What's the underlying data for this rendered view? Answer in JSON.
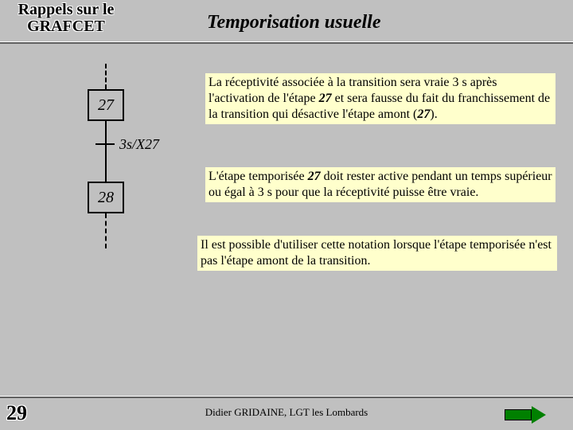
{
  "header": {
    "subtitle_line1": "Rappels sur le",
    "subtitle_line2": "GRAFCET",
    "title": "Temporisation usuelle"
  },
  "diagram": {
    "step_a": "27",
    "step_b": "28",
    "receptivity": "3s/X27"
  },
  "paragraphs": {
    "p1_a": "La réceptivité associée à la transition sera vraie 3 s après l'activation de l'étape ",
    "p1_b": "27",
    "p1_c": " et sera fausse du fait du franchissement de la transition qui désactive l'étape amont (",
    "p1_d": "27",
    "p1_e": ").",
    "p2_a": "L'étape temporisée ",
    "p2_b": "27",
    "p2_c": " doit rester active pendant un temps supérieur ou égal à 3 s pour que la réceptivité puisse être vraie.",
    "p3": "Il est possible d'utiliser cette notation lorsque l'étape temporisée n'est pas l'étape amont de la transition."
  },
  "footer": {
    "author": "Didier GRIDAINE, LGT les Lombards",
    "page": "29"
  },
  "colors": {
    "bg": "#c0c0c0",
    "highlight": "#ffffcc",
    "arrow": "#008000"
  }
}
